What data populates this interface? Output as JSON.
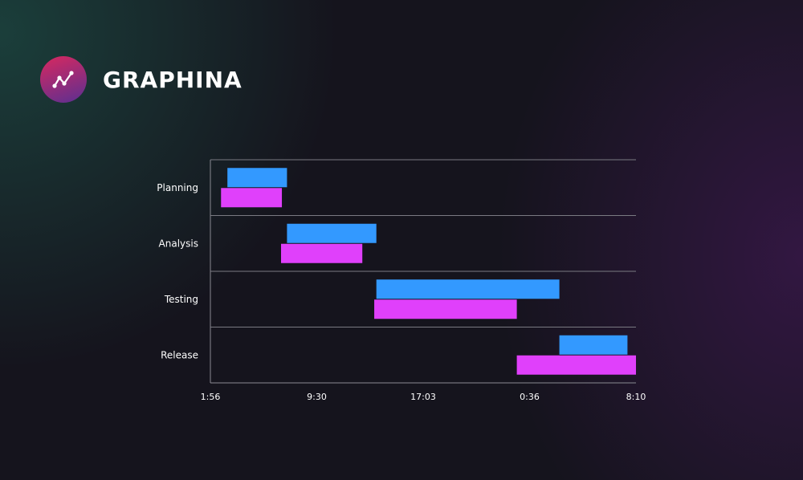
{
  "brand": {
    "name": "GRAPHINA",
    "icon": "line-chart-icon",
    "gradient": [
      "#d8285f",
      "#5a2f92"
    ]
  },
  "chart_data": {
    "type": "bar",
    "orientation": "horizontal-range",
    "categories": [
      "Planning",
      "Analysis",
      "Testing",
      "Release"
    ],
    "x_ticks": [
      "1:56",
      "9:30",
      "17:03",
      "0:36",
      "8:10"
    ],
    "series": [
      {
        "color": "#3399ff",
        "ranges": [
          [
            0.04,
            0.18
          ],
          [
            0.18,
            0.39
          ],
          [
            0.39,
            0.82
          ],
          [
            0.82,
            0.98
          ]
        ]
      },
      {
        "color": "#e040fb",
        "ranges": [
          [
            0.025,
            0.168
          ],
          [
            0.166,
            0.357
          ],
          [
            0.385,
            0.72
          ],
          [
            0.72,
            1.0
          ]
        ]
      }
    ],
    "xlim": [
      0,
      1
    ],
    "grid": "horizontal separators between categories"
  }
}
